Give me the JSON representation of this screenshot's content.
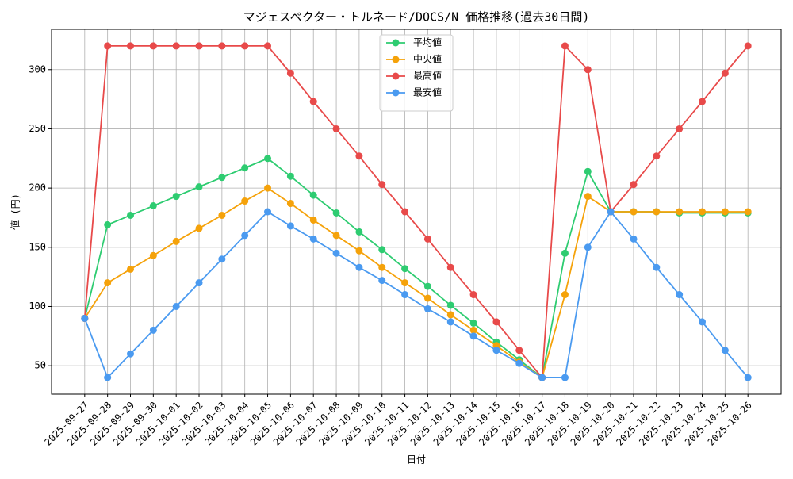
{
  "chart_data": {
    "type": "line",
    "title": "マジェスペクター・トルネード/DOCS/N 価格推移(過去30日間)",
    "x_label": "日付",
    "y_label": "値 (円)",
    "categories": [
      "2025-09-27",
      "2025-09-28",
      "2025-09-29",
      "2025-09-30",
      "2025-10-01",
      "2025-10-02",
      "2025-10-03",
      "2025-10-04",
      "2025-10-05",
      "2025-10-06",
      "2025-10-07",
      "2025-10-08",
      "2025-10-09",
      "2025-10-10",
      "2025-10-11",
      "2025-10-12",
      "2025-10-13",
      "2025-10-14",
      "2025-10-15",
      "2025-10-16",
      "2025-10-17",
      "2025-10-18",
      "2025-10-19",
      "2025-10-20",
      "2025-10-21",
      "2025-10-22",
      "2025-10-23",
      "2025-10-24",
      "2025-10-25",
      "2025-10-26"
    ],
    "series": [
      {
        "name": "平均値",
        "color": "#2ecc71",
        "values": [
          90,
          169,
          177,
          185,
          193,
          201,
          209,
          217,
          225,
          210,
          194,
          179,
          163,
          148,
          132,
          117,
          101,
          86,
          70,
          55,
          40,
          145,
          214,
          180,
          180,
          180,
          179,
          179,
          179,
          179
        ]
      },
      {
        "name": "中央値",
        "color": "#f5a20a",
        "values": [
          90,
          120,
          131.5,
          143,
          155,
          166,
          177,
          189,
          200,
          187,
          173,
          160,
          147,
          133,
          120,
          107,
          93,
          80,
          67,
          53,
          40,
          110,
          193,
          180,
          180,
          180,
          180,
          180,
          180,
          180
        ]
      },
      {
        "name": "最高値",
        "color": "#e84a4a",
        "values": [
          90,
          320,
          320,
          320,
          320,
          320,
          320,
          320,
          320,
          297,
          273,
          250,
          227,
          203,
          180,
          157,
          133,
          110,
          87,
          63,
          40,
          320,
          300,
          180,
          203,
          227,
          250,
          273,
          297,
          320
        ]
      },
      {
        "name": "最安値",
        "color": "#4a9af0",
        "values": [
          90,
          40,
          60,
          80,
          100,
          120,
          140,
          160,
          180,
          168,
          157,
          145,
          133,
          122,
          110,
          98,
          87,
          75,
          63,
          52,
          40,
          40,
          150,
          180,
          157,
          133,
          110,
          87,
          63,
          40
        ]
      }
    ],
    "ylim": [
      26,
      334
    ],
    "yticks": [
      50,
      100,
      150,
      200,
      250,
      300
    ],
    "grid": true,
    "legend": "upper center"
  }
}
